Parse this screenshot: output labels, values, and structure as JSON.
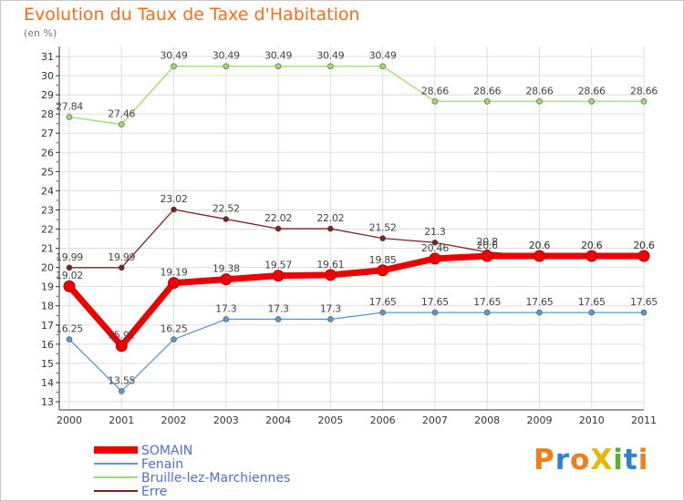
{
  "title": "Evolution du Taux de Taxe d'Habitation",
  "subtitle": "(en %)",
  "logo": {
    "text": "ProXiti",
    "colors": [
      "#f07c1a",
      "#2f7fd6",
      "#f07c1a",
      "#e6b800",
      "#5ab031",
      "#2f7fd6",
      "#f07c1a"
    ]
  },
  "chart_data": {
    "type": "line",
    "title": "Evolution du Taux de Taxe d'Habitation",
    "ylabel": "(en %)",
    "xlabel": "",
    "x": [
      "2000",
      "2001",
      "2002",
      "2003",
      "2004",
      "2005",
      "2006",
      "2007",
      "2008",
      "2009",
      "2010",
      "2011"
    ],
    "ylim": [
      13,
      31
    ],
    "yticks": [
      13,
      14,
      15,
      16,
      17,
      18,
      19,
      20,
      21,
      22,
      23,
      24,
      25,
      26,
      27,
      28,
      29,
      30,
      31
    ],
    "grid": true,
    "legend_position": "bottom-left",
    "series": [
      {
        "name": "SOMAIN",
        "color": "#ee0000",
        "values": [
          19.02,
          15.91,
          19.19,
          19.38,
          19.57,
          19.61,
          19.85,
          20.46,
          20.6,
          20.6,
          20.6,
          20.6
        ],
        "labels": [
          "19.02",
          "15.91",
          "19.19",
          "19.38",
          "19.57",
          "19.61",
          "19.85",
          "20.46",
          "20.6",
          "20.6",
          "20.6",
          "20.6"
        ]
      },
      {
        "name": "Fenain",
        "color": "#5b98cc",
        "values": [
          16.25,
          13.55,
          16.25,
          17.3,
          17.3,
          17.3,
          17.65,
          17.65,
          17.65,
          17.65,
          17.65,
          17.65
        ],
        "labels": [
          "16.25",
          "13.55",
          "16.25",
          "17.3",
          "17.3",
          "17.3",
          "17.65",
          "17.65",
          "17.65",
          "17.65",
          "17.65",
          "17.65"
        ]
      },
      {
        "name": "Bruille-lez-Marchiennes",
        "color": "#99dd66",
        "values": [
          27.84,
          27.46,
          30.49,
          30.49,
          30.49,
          30.49,
          30.49,
          28.66,
          28.66,
          28.66,
          28.66,
          28.66
        ],
        "labels": [
          "27.84",
          "27.46",
          "30.49",
          "30.49",
          "30.49",
          "30.49",
          "30.49",
          "28.66",
          "28.66",
          "28.66",
          "28.66",
          "28.66"
        ]
      },
      {
        "name": "Erre",
        "color": "#7a2222",
        "values": [
          19.99,
          19.99,
          23.02,
          22.52,
          22.02,
          22.02,
          21.52,
          21.3,
          20.8,
          20.6,
          20.6,
          20.6
        ],
        "labels": [
          "19.99",
          "19.99",
          "23.02",
          "22.52",
          "22.02",
          "22.02",
          "21.52",
          "21.3",
          "20.8",
          "20.6",
          "20.6",
          "20.6"
        ]
      }
    ]
  }
}
